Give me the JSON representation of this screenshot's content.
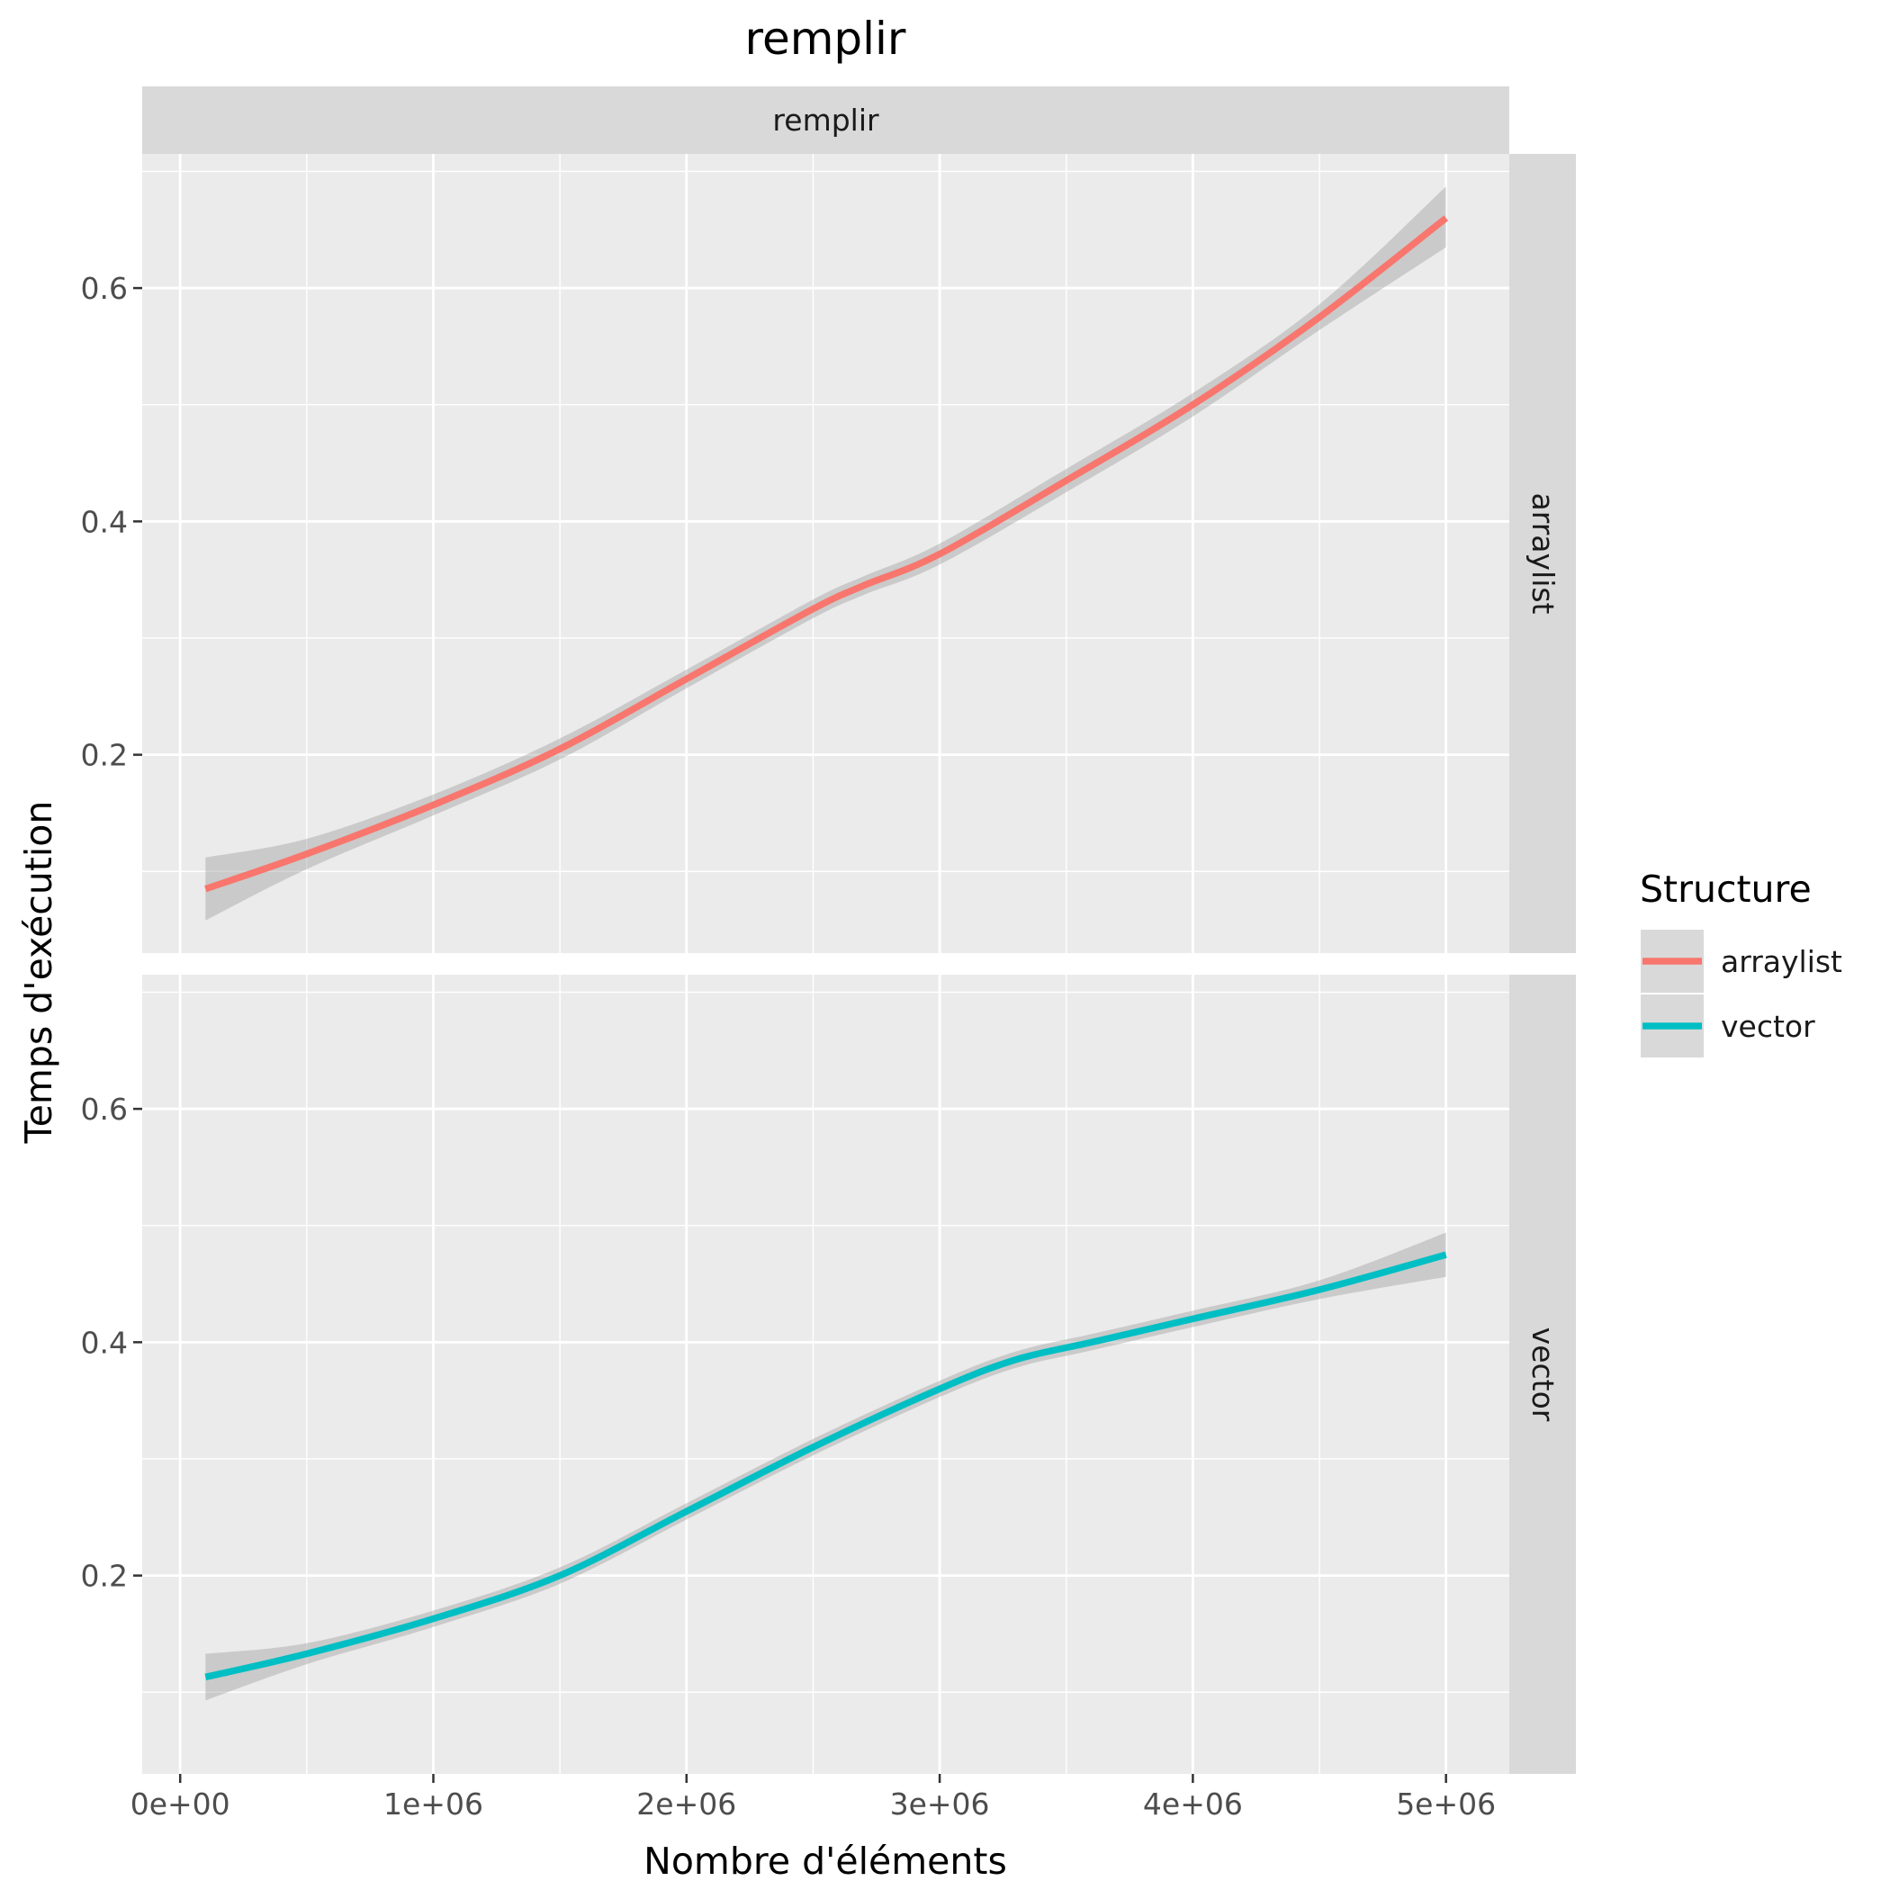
{
  "chart_data": {
    "type": "line",
    "title": "remplir",
    "xlabel": "Nombre d'éléments",
    "ylabel": "Temps d'exécution",
    "facet_col_label": "remplir",
    "x_ticks": [
      0,
      1000000,
      2000000,
      3000000,
      4000000,
      5000000
    ],
    "x_tick_labels": [
      "0e+00",
      "1e+06",
      "2e+06",
      "3e+06",
      "4e+06",
      "5e+06"
    ],
    "y_ticks": [
      0.2,
      0.4,
      0.6
    ],
    "y_tick_labels": [
      "0.2",
      "0.4",
      "0.6"
    ],
    "xlim": [
      -150000,
      5250000
    ],
    "ylim": [
      0.03,
      0.715
    ],
    "grid": true,
    "legend": {
      "title": "Structure",
      "position": "right",
      "entries": [
        "arraylist",
        "vector"
      ]
    },
    "series": [
      {
        "name": "arraylist",
        "color": "#F8766D",
        "x": [
          100000,
          500000,
          1000000,
          1500000,
          2000000,
          2500000,
          2700000,
          3000000,
          3500000,
          4000000,
          4500000,
          5000000
        ],
        "y": [
          0.085,
          0.115,
          0.157,
          0.205,
          0.265,
          0.325,
          0.345,
          0.372,
          0.435,
          0.5,
          0.575,
          0.66
        ],
        "lower": [
          0.058,
          0.102,
          0.148,
          0.196,
          0.257,
          0.317,
          0.337,
          0.363,
          0.425,
          0.49,
          0.564,
          0.635
        ],
        "upper": [
          0.112,
          0.128,
          0.166,
          0.214,
          0.273,
          0.333,
          0.353,
          0.381,
          0.445,
          0.51,
          0.586,
          0.687
        ]
      },
      {
        "name": "vector",
        "color": "#00BFC4",
        "x": [
          100000,
          500000,
          1000000,
          1500000,
          2000000,
          2500000,
          3000000,
          3300000,
          3600000,
          4000000,
          4500000,
          5000000
        ],
        "y": [
          0.113,
          0.133,
          0.163,
          0.2,
          0.255,
          0.31,
          0.36,
          0.385,
          0.4,
          0.42,
          0.445,
          0.475
        ],
        "lower": [
          0.093,
          0.124,
          0.156,
          0.193,
          0.248,
          0.303,
          0.353,
          0.378,
          0.393,
          0.413,
          0.437,
          0.456
        ],
        "upper": [
          0.133,
          0.142,
          0.17,
          0.207,
          0.262,
          0.317,
          0.367,
          0.392,
          0.407,
          0.427,
          0.453,
          0.494
        ]
      }
    ]
  }
}
